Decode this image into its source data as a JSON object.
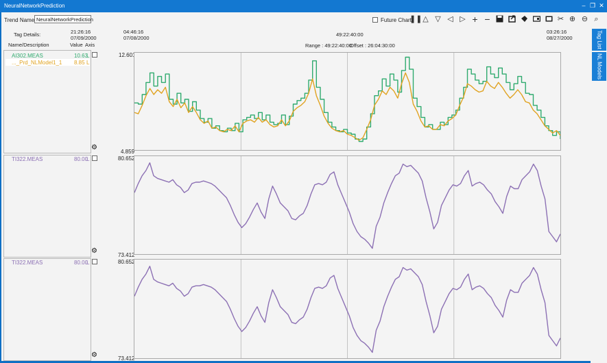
{
  "window": {
    "title": "NeuralNetworkPrediction"
  },
  "toolbar": {
    "trend_name_label": "Trend Name",
    "trend_name_value": "NeuralNetworkPrediction",
    "future_chart_label": "Future Chart"
  },
  "side_tabs": [
    {
      "label": "Tag List"
    },
    {
      "label": "NL Models"
    }
  ],
  "details": {
    "tag_details_label": "Tag Details:",
    "name_desc_header": "Name/Description",
    "value_header": "Value",
    "axis_header": "Axis",
    "time_left_time": "21:26:16",
    "time_left_date": "07/09/2000",
    "time_start_time": "04:46:16",
    "time_start_date": "07/08/2000",
    "time_mid": "49:22:40:00",
    "time_end_time": "03:26:16",
    "time_end_date": "08/27/2000",
    "range_text": "Range : 49:22:40:00",
    "offset_text": "Offset : 26:04:30:00"
  },
  "panels": [
    {
      "tags": [
        {
          "name": "AI302.MEAS",
          "value": "10.63",
          "axis": "L",
          "color": "#2faa6e"
        },
        {
          "name": "..._Prd_NLModel1_1",
          "value": "8.85",
          "axis": "L",
          "color": "#e0a321"
        }
      ],
      "y_max_label": "12.601",
      "y_min_label": "4.859"
    },
    {
      "tags": [
        {
          "name": "TI322.MEAS",
          "value": "80.00",
          "axis": "L",
          "color": "#8c70b4"
        }
      ],
      "y_max_label": "80.652",
      "y_min_label": "73.412"
    },
    {
      "tags": [
        {
          "name": "TI322.MEAS",
          "value": "80.00",
          "axis": "L",
          "color": "#8c70b4"
        }
      ],
      "y_max_label": "80.652",
      "y_min_label": "73.412"
    }
  ],
  "chart_data": [
    {
      "type": "line",
      "ylim": [
        4.859,
        12.601
      ],
      "series": [
        {
          "name": "AI302.MEAS",
          "color": "#2faa6e",
          "values": [
            8.6,
            8.5,
            9.3,
            10.3,
            11.1,
            10.0,
            10.8,
            10.3,
            11.0,
            8.9,
            8.5,
            9.4,
            8.6,
            8.9,
            7.9,
            8.7,
            8.0,
            7.3,
            7.0,
            7.3,
            6.5,
            6.7,
            6.3,
            6.2,
            6.5,
            6.3,
            6.9,
            6.2,
            7.2,
            7.4,
            7.6,
            7.3,
            7.8,
            7.2,
            7.6,
            7.0,
            6.8,
            6.9,
            7.6,
            6.8,
            7.5,
            8.5,
            8.8,
            9.0,
            9.4,
            10.5,
            12.1,
            9.9,
            8.9,
            7.8,
            7.0,
            6.6,
            6.3,
            6.2,
            6.4,
            6.1,
            6.0,
            5.6,
            5.4,
            5.6,
            6.6,
            7.7,
            9.2,
            9.6,
            10.6,
            10.0,
            11.0,
            10.5,
            9.5,
            11.3,
            12.4,
            11.4,
            9.0,
            8.3,
            7.4,
            6.6,
            6.8,
            6.4,
            6.4,
            7.0,
            6.8,
            7.4,
            7.6,
            8.0,
            9.0,
            9.9,
            11.4,
            11.0,
            10.5,
            10.2,
            10.4,
            11.6,
            11.0,
            10.7,
            11.5,
            11.0,
            10.3,
            9.7,
            10.2,
            10.8,
            10.3,
            9.4,
            9.3,
            8.4,
            8.0,
            7.4,
            6.7,
            6.3,
            5.9,
            6.2,
            5.6
          ]
        },
        {
          "name": "..._Prd_NLModel1_1",
          "color": "#e0a321",
          "values": [
            7.8,
            7.7,
            8.4,
            9.2,
            9.8,
            9.3,
            9.7,
            9.4,
            9.9,
            8.7,
            8.3,
            8.9,
            8.2,
            8.6,
            7.8,
            8.3,
            7.8,
            7.2,
            6.9,
            7.1,
            6.5,
            6.6,
            6.3,
            6.2,
            6.4,
            6.3,
            6.7,
            6.2,
            6.9,
            7.1,
            7.2,
            7.0,
            7.4,
            7.0,
            7.2,
            6.8,
            6.6,
            6.7,
            7.2,
            6.7,
            7.1,
            7.9,
            8.2,
            8.4,
            8.7,
            9.4,
            10.6,
            9.2,
            8.4,
            7.5,
            6.9,
            6.5,
            6.3,
            6.2,
            6.3,
            6.0,
            5.9,
            5.7,
            5.5,
            5.7,
            6.4,
            7.2,
            8.4,
            8.9,
            9.6,
            9.3,
            9.9,
            9.6,
            9.0,
            10.2,
            11.1,
            10.3,
            8.5,
            7.9,
            7.1,
            6.6,
            6.7,
            6.4,
            6.4,
            6.8,
            6.7,
            7.1,
            7.3,
            7.6,
            8.4,
            9.1,
            10.2,
            10.0,
            9.7,
            9.5,
            9.6,
            10.4,
            10.0,
            9.8,
            10.3,
            9.9,
            9.4,
            9.0,
            9.3,
            9.7,
            9.3,
            8.7,
            8.6,
            8.0,
            7.7,
            7.2,
            6.7,
            6.4,
            6.1,
            6.3,
            5.9
          ]
        }
      ]
    },
    {
      "type": "line",
      "ylim": [
        73.412,
        80.652
      ],
      "series": [
        {
          "name": "TI322.MEAS",
          "color": "#8c70b4",
          "values": [
            78.0,
            78.7,
            79.3,
            79.7,
            80.3,
            79.3,
            79.1,
            79.0,
            78.9,
            78.8,
            79.0,
            78.6,
            78.4,
            78.0,
            78.2,
            78.7,
            78.8,
            78.8,
            78.9,
            78.8,
            78.7,
            78.5,
            78.2,
            77.9,
            77.6,
            77.0,
            76.3,
            75.7,
            75.3,
            75.6,
            76.1,
            76.7,
            77.2,
            76.5,
            76.0,
            77.5,
            78.5,
            77.9,
            77.2,
            76.9,
            76.6,
            76.0,
            75.9,
            76.2,
            76.4,
            77.0,
            77.9,
            78.6,
            78.7,
            78.6,
            78.8,
            79.4,
            79.6,
            78.6,
            77.9,
            77.2,
            76.5,
            75.6,
            75.0,
            74.6,
            74.4,
            74.1,
            73.7,
            75.4,
            76.1,
            77.2,
            78.0,
            78.7,
            79.3,
            79.5,
            80.2,
            80.0,
            80.1,
            79.8,
            79.5,
            78.9,
            77.6,
            76.5,
            75.2,
            75.7,
            77.0,
            77.6,
            78.2,
            78.6,
            78.5,
            78.7,
            79.3,
            79.7,
            78.5,
            78.7,
            78.8,
            78.6,
            78.2,
            77.9,
            77.3,
            76.9,
            76.4,
            77.7,
            78.5,
            78.3,
            78.3,
            79.0,
            79.3,
            79.6,
            80.2,
            79.7,
            78.5,
            77.5,
            75.0,
            74.6,
            74.2,
            74.8
          ]
        }
      ]
    },
    {
      "type": "line",
      "ylim": [
        73.412,
        80.652
      ],
      "series": [
        {
          "name": "TI322.MEAS",
          "color": "#8c70b4",
          "values": [
            78.0,
            78.7,
            79.3,
            79.7,
            80.3,
            79.3,
            79.1,
            79.0,
            78.9,
            78.8,
            79.0,
            78.6,
            78.4,
            78.0,
            78.2,
            78.7,
            78.8,
            78.8,
            78.9,
            78.8,
            78.7,
            78.5,
            78.2,
            77.9,
            77.6,
            77.0,
            76.3,
            75.7,
            75.3,
            75.6,
            76.1,
            76.7,
            77.2,
            76.5,
            76.0,
            77.5,
            78.5,
            77.9,
            77.2,
            76.9,
            76.6,
            76.0,
            75.9,
            76.2,
            76.4,
            77.0,
            77.9,
            78.6,
            78.7,
            78.6,
            78.8,
            79.4,
            79.6,
            78.6,
            77.9,
            77.2,
            76.5,
            75.6,
            75.0,
            74.6,
            74.4,
            74.1,
            73.7,
            75.4,
            76.1,
            77.2,
            78.0,
            78.7,
            79.3,
            79.5,
            80.2,
            80.0,
            80.1,
            79.8,
            79.5,
            78.9,
            77.6,
            76.5,
            75.2,
            75.7,
            77.0,
            77.6,
            78.2,
            78.6,
            78.5,
            78.7,
            79.3,
            79.7,
            78.5,
            78.7,
            78.8,
            78.6,
            78.2,
            77.9,
            77.3,
            76.9,
            76.4,
            77.7,
            78.5,
            78.3,
            78.3,
            79.0,
            79.3,
            79.6,
            80.2,
            79.7,
            78.5,
            77.5,
            75.0,
            74.6,
            74.2,
            74.8
          ]
        }
      ]
    }
  ]
}
